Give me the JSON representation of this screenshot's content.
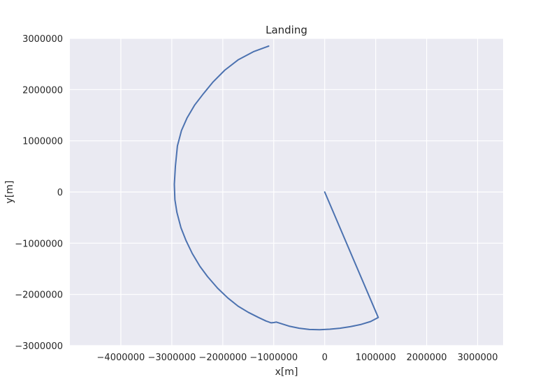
{
  "chart_data": {
    "type": "line",
    "title": "Landing",
    "xlabel": "x[m]",
    "ylabel": "y[m]",
    "xlim": [
      -5000000,
      3500000
    ],
    "ylim": [
      -3000000,
      3000000
    ],
    "xticks": [
      -4000000,
      -3000000,
      -2000000,
      -1000000,
      0,
      1000000,
      2000000,
      3000000
    ],
    "xtick_labels": [
      "−4000000",
      "−3000000",
      "−2000000",
      "−1000000",
      "0",
      "1000000",
      "2000000",
      "3000000"
    ],
    "yticks": [
      -3000000,
      -2000000,
      -1000000,
      0,
      1000000,
      2000000,
      3000000
    ],
    "ytick_labels": [
      "−3000000",
      "−2000000",
      "−1000000",
      "0",
      "1000000",
      "2000000",
      "3000000"
    ],
    "grid": true,
    "series": [
      {
        "color": "#4c72b0",
        "x": [
          0,
          1050000,
          900000,
          700000,
          500000,
          300000,
          100000,
          -100000,
          -300000,
          -500000,
          -700000,
          -950000,
          -1000000,
          -1050000,
          -1150000,
          -1300000,
          -1500000,
          -1700000,
          -1900000,
          -2100000,
          -2300000,
          -2450000,
          -2600000,
          -2720000,
          -2820000,
          -2900000,
          -2940000,
          -2950000,
          -2930000,
          -2890000,
          -2810000,
          -2700000,
          -2550000,
          -2380000,
          -2190000,
          -1960000,
          -1700000,
          -1400000,
          -1100000
        ],
        "y": [
          0,
          -2450000,
          -2530000,
          -2590000,
          -2630000,
          -2660000,
          -2680000,
          -2690000,
          -2685000,
          -2660000,
          -2620000,
          -2540000,
          -2550000,
          -2555000,
          -2520000,
          -2450000,
          -2350000,
          -2230000,
          -2070000,
          -1880000,
          -1650000,
          -1450000,
          -1200000,
          -950000,
          -700000,
          -400000,
          -150000,
          150000,
          500000,
          900000,
          1200000,
          1450000,
          1700000,
          1920000,
          2150000,
          2380000,
          2580000,
          2740000,
          2850000
        ]
      }
    ]
  }
}
